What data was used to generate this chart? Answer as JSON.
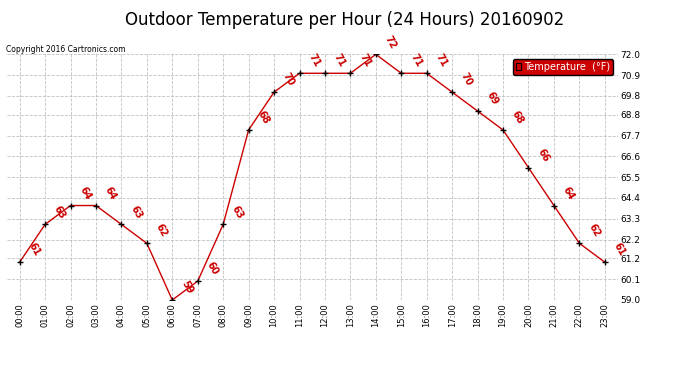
{
  "title": "Outdoor Temperature per Hour (24 Hours) 20160902",
  "copyright": "Copyright 2016 Cartronics.com",
  "legend_label": "Temperature  (°F)",
  "hours": [
    "00:00",
    "01:00",
    "02:00",
    "03:00",
    "04:00",
    "05:00",
    "06:00",
    "07:00",
    "08:00",
    "09:00",
    "10:00",
    "11:00",
    "12:00",
    "13:00",
    "14:00",
    "15:00",
    "16:00",
    "17:00",
    "18:00",
    "19:00",
    "20:00",
    "21:00",
    "22:00",
    "23:00"
  ],
  "temps": [
    61,
    63,
    64,
    64,
    63,
    62,
    59,
    60,
    63,
    68,
    70,
    71,
    71,
    71,
    72,
    71,
    71,
    70,
    69,
    68,
    66,
    64,
    62,
    61
  ],
  "line_color": "#cc0000",
  "marker_color": "#000000",
  "ylim": [
    59.0,
    72.0
  ],
  "yticks": [
    59.0,
    60.1,
    61.2,
    62.2,
    63.3,
    64.4,
    65.5,
    66.6,
    67.7,
    68.8,
    69.8,
    70.9,
    72.0
  ],
  "grid_color": "#bbbbbb",
  "background_color": "#ffffff",
  "title_fontsize": 12,
  "label_color_rotated": "#cc0000",
  "legend_bg": "#cc0000",
  "legend_text_color": "#ffffff"
}
